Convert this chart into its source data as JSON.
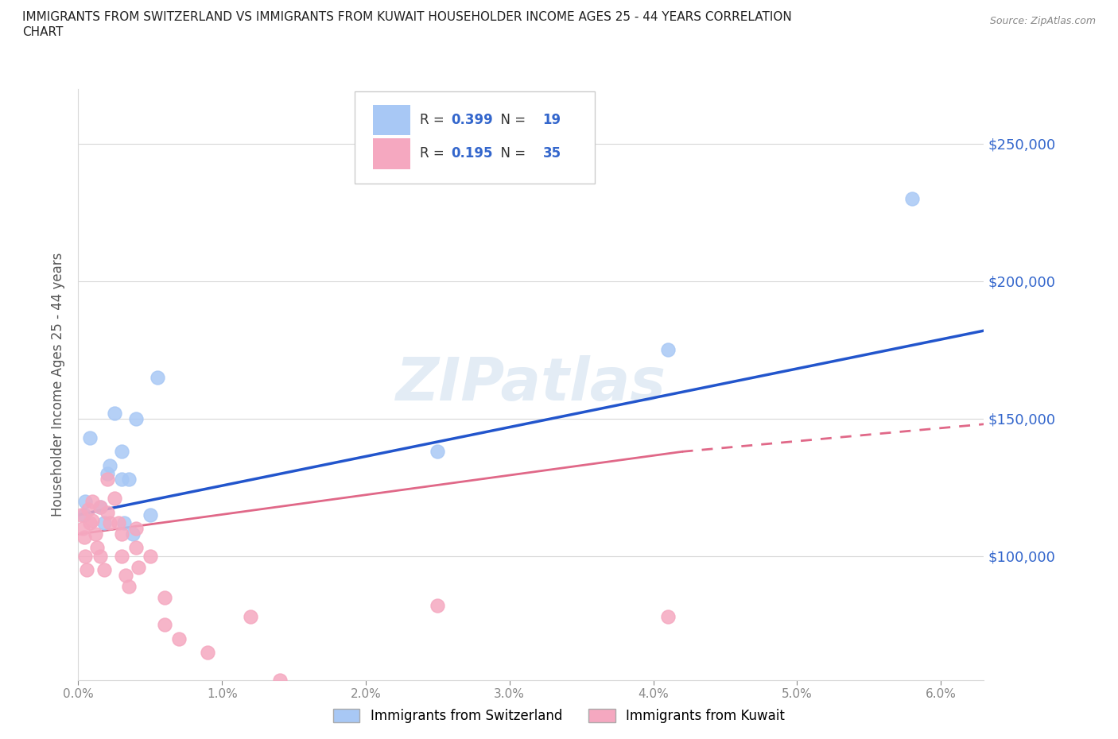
{
  "title": "IMMIGRANTS FROM SWITZERLAND VS IMMIGRANTS FROM KUWAIT HOUSEHOLDER INCOME AGES 25 - 44 YEARS CORRELATION\nCHART",
  "source": "Source: ZipAtlas.com",
  "ylabel": "Householder Income Ages 25 - 44 years",
  "xlim": [
    0.0,
    0.063
  ],
  "ylim": [
    55000,
    270000
  ],
  "watermark": "ZIPatlas",
  "swiss_color": "#a8c8f5",
  "kuwait_color": "#f5a8c0",
  "swiss_line_color": "#2255cc",
  "kuwait_line_color": "#e06888",
  "R_swiss": 0.399,
  "N_swiss": 19,
  "R_kuwait": 0.195,
  "N_kuwait": 35,
  "swiss_x": [
    0.0004,
    0.0005,
    0.0008,
    0.0015,
    0.0018,
    0.002,
    0.0022,
    0.0025,
    0.003,
    0.003,
    0.0032,
    0.0035,
    0.0038,
    0.004,
    0.005,
    0.0055,
    0.025,
    0.041,
    0.058
  ],
  "swiss_y": [
    115000,
    120000,
    143000,
    118000,
    112000,
    130000,
    133000,
    152000,
    128000,
    138000,
    112000,
    128000,
    108000,
    150000,
    115000,
    165000,
    138000,
    175000,
    230000
  ],
  "kuwait_x": [
    0.0002,
    0.0003,
    0.0004,
    0.0005,
    0.0006,
    0.0007,
    0.0008,
    0.001,
    0.001,
    0.0012,
    0.0013,
    0.0015,
    0.0015,
    0.0018,
    0.002,
    0.002,
    0.0022,
    0.0025,
    0.0028,
    0.003,
    0.003,
    0.0033,
    0.0035,
    0.004,
    0.004,
    0.0042,
    0.005,
    0.006,
    0.006,
    0.007,
    0.009,
    0.012,
    0.014,
    0.025,
    0.041
  ],
  "kuwait_y": [
    115000,
    110000,
    107000,
    100000,
    95000,
    117000,
    112000,
    120000,
    113000,
    108000,
    103000,
    100000,
    118000,
    95000,
    128000,
    116000,
    112000,
    121000,
    112000,
    100000,
    108000,
    93000,
    89000,
    110000,
    103000,
    96000,
    100000,
    85000,
    75000,
    70000,
    65000,
    78000,
    55000,
    82000,
    78000
  ],
  "xticks": [
    0.0,
    0.01,
    0.02,
    0.03,
    0.04,
    0.05,
    0.06
  ],
  "ytick_positions": [
    100000,
    150000,
    200000,
    250000
  ],
  "ytick_labels": [
    "$100,000",
    "$150,000",
    "$200,000",
    "$250,000"
  ],
  "grid_color": "#d8d8d8",
  "background_color": "#ffffff",
  "legend_box_color": "#cccccc",
  "text_color_dark": "#333333",
  "value_color": "#3366cc"
}
